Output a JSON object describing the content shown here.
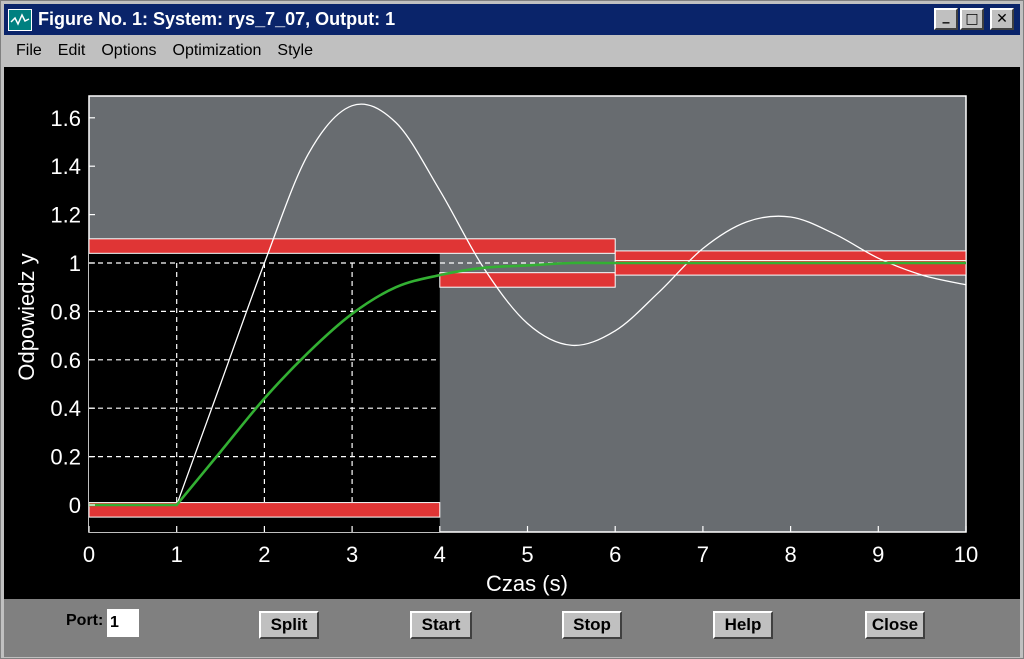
{
  "window": {
    "title": "Figure No. 1: System: rys_7_07, Output: 1",
    "minimize_glyph": "_",
    "maximize_glyph": "□",
    "close_glyph": "✕"
  },
  "menu": {
    "items": [
      "File",
      "Edit",
      "Options",
      "Optimization",
      "Style"
    ]
  },
  "controls": {
    "port_label": "Port:",
    "port_value": "1",
    "buttons": [
      "Split",
      "Start",
      "Stop",
      "Help",
      "Close"
    ]
  },
  "colors": {
    "title_bar": "#0a246a",
    "plot_background": "#686c70",
    "constraint_fill": "#e03535",
    "optimized_response": "#33b033",
    "initial_response": "#ffffff",
    "grid": "#ffffff"
  },
  "chart_data": {
    "type": "line",
    "xlabel": "Czas (s)",
    "ylabel": "Odpowiedz y",
    "xlim": [
      0,
      10
    ],
    "ylim": [
      -0.1,
      1.7
    ],
    "xticks": [
      "0",
      "1",
      "2",
      "3",
      "4",
      "5",
      "6",
      "7",
      "8",
      "9",
      "10"
    ],
    "yticks": [
      "0",
      "0.2",
      "0.4",
      "0.6",
      "0.8",
      "1",
      "1.2",
      "1.4",
      "1.6"
    ],
    "grid": "dashed, inside lower-left constraint region",
    "constraint_bounds": {
      "upper": [
        {
          "x": [
            0,
            6
          ],
          "y": 1.1
        },
        {
          "x": [
            6,
            10
          ],
          "y": 1.05
        }
      ],
      "lower": [
        {
          "x": [
            0,
            4
          ],
          "y": -0.05
        },
        {
          "x": [
            4,
            6
          ],
          "y": 0.9
        },
        {
          "x": [
            6,
            10
          ],
          "y": 0.95
        }
      ]
    },
    "series": [
      {
        "style": "white thin line",
        "x": [
          0,
          1,
          1.5,
          2,
          2.5,
          3,
          3.5,
          4,
          4.5,
          5,
          5.5,
          6,
          6.5,
          7,
          7.5,
          8,
          8.5,
          9,
          9.5,
          10
        ],
        "y": [
          0,
          0,
          0.5,
          1.0,
          1.45,
          1.65,
          1.58,
          1.3,
          0.98,
          0.75,
          0.66,
          0.72,
          0.88,
          1.06,
          1.17,
          1.19,
          1.12,
          1.02,
          0.95,
          0.91
        ]
      },
      {
        "style": "green thick line",
        "x": [
          0,
          1,
          1.5,
          2,
          2.5,
          3,
          3.5,
          4,
          4.5,
          5,
          5.5,
          6,
          7,
          8,
          9,
          10
        ],
        "y": [
          0,
          0,
          0.22,
          0.44,
          0.63,
          0.79,
          0.9,
          0.95,
          0.98,
          0.99,
          1.0,
          1.0,
          1.0,
          1.0,
          1.0,
          1.0
        ]
      }
    ]
  }
}
